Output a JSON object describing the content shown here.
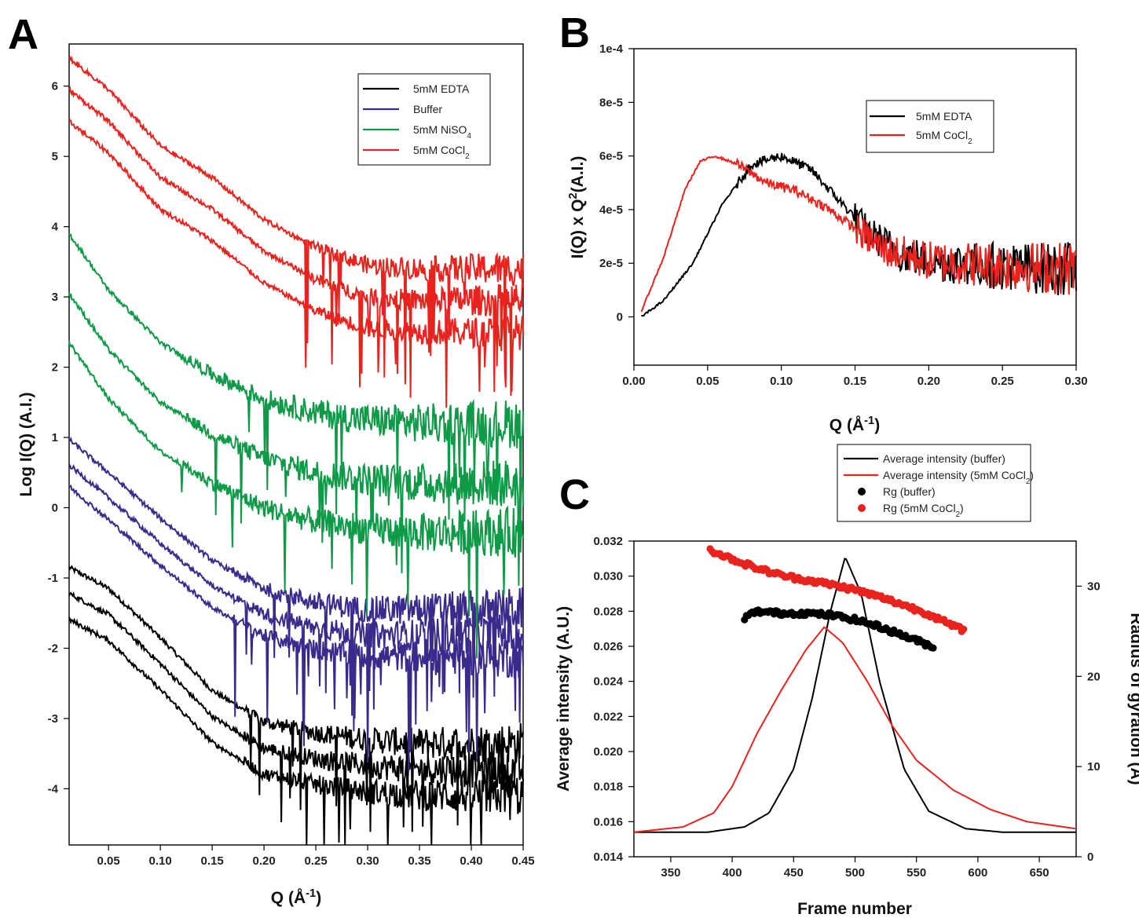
{
  "chart_data": [
    {
      "panel": "A",
      "type": "line",
      "xlabel": "Q (Å-1)",
      "ylabel": "Log I(Q) (A.I.)",
      "xlim": [
        0.012,
        0.45
      ],
      "ylim": [
        -4.8,
        6.6
      ],
      "xticks": [
        0.05,
        0.1,
        0.15,
        0.2,
        0.25,
        0.3,
        0.35,
        0.4,
        0.45
      ],
      "yticks": [
        -4,
        -3,
        -2,
        -1,
        0,
        1,
        2,
        3,
        4,
        5,
        6
      ],
      "grid": false,
      "legend_position": "top-right",
      "series": [
        {
          "name": "5mM EDTA",
          "color": "#000000",
          "offsets": [
            0,
            -0.37,
            -0.74
          ],
          "noise_from": 0.18,
          "x": [
            0.012,
            0.05,
            0.1,
            0.15,
            0.2,
            0.25,
            0.3,
            0.35,
            0.4,
            0.45
          ],
          "y": [
            -0.85,
            -1.15,
            -1.85,
            -2.6,
            -3.05,
            -3.2,
            -3.3,
            -3.35,
            -3.35,
            -3.35
          ]
        },
        {
          "name": "Buffer",
          "color": "#3a2a8c",
          "offsets": [
            0,
            -0.36,
            -0.67
          ],
          "noise_from": 0.17,
          "x": [
            0.012,
            0.05,
            0.1,
            0.15,
            0.2,
            0.25,
            0.3,
            0.35,
            0.4,
            0.45
          ],
          "y": [
            0.97,
            0.5,
            -0.15,
            -0.75,
            -1.15,
            -1.35,
            -1.45,
            -1.45,
            -1.45,
            -1.45
          ]
        },
        {
          "name": "5mM NiSO4",
          "color": "#0e9a47",
          "offsets": [
            0,
            -0.85,
            -1.55
          ],
          "noise_from": 0.12,
          "x": [
            0.012,
            0.05,
            0.1,
            0.15,
            0.2,
            0.25,
            0.3,
            0.35,
            0.4,
            0.45
          ],
          "y": [
            3.9,
            3.1,
            2.35,
            1.9,
            1.55,
            1.35,
            1.25,
            1.2,
            1.2,
            1.2
          ]
        },
        {
          "name": "5mM CoCl2",
          "color": "#e8231e",
          "offsets": [
            0,
            -0.45,
            -0.9
          ],
          "noise_from": 0.24,
          "x": [
            0.012,
            0.05,
            0.1,
            0.15,
            0.2,
            0.25,
            0.3,
            0.35,
            0.4,
            0.45
          ],
          "y": [
            6.4,
            5.95,
            5.15,
            4.7,
            4.1,
            3.7,
            3.45,
            3.4,
            3.4,
            3.4
          ]
        }
      ]
    },
    {
      "panel": "B",
      "type": "line",
      "xlabel": "Q (Å-1)",
      "ylabel": "I(Q) x Q2(A.I.)",
      "xlim": [
        0.0,
        0.3
      ],
      "ylim": [
        -1.8e-05,
        0.0001
      ],
      "xticks": [
        0.0,
        0.05,
        0.1,
        0.15,
        0.2,
        0.25,
        0.3
      ],
      "yticks": [
        0,
        2e-05,
        4e-05,
        6e-05,
        8e-05,
        0.0001
      ],
      "ytick_labels": [
        "0",
        "2e-5",
        "4e-5",
        "6e-5",
        "8e-5",
        "1e-4"
      ],
      "grid": false,
      "legend_position": "top-right",
      "series": [
        {
          "name": "5mM EDTA",
          "color": "#000000",
          "x": [
            0.005,
            0.02,
            0.04,
            0.06,
            0.08,
            0.1,
            0.12,
            0.14,
            0.16,
            0.18,
            0.2,
            0.22,
            0.25,
            0.28,
            0.3
          ],
          "y": [
            0.0,
            6e-06,
            2e-05,
            4.2e-05,
            5.7e-05,
            6e-05,
            5.5e-05,
            4.3e-05,
            3.1e-05,
            2.4e-05,
            2.1e-05,
            2e-05,
            1.9e-05,
            1.8e-05,
            1.8e-05
          ]
        },
        {
          "name": "5mM CoCl2",
          "color": "#e8231e",
          "x": [
            0.005,
            0.02,
            0.035,
            0.045,
            0.055,
            0.07,
            0.09,
            0.11,
            0.13,
            0.15,
            0.17,
            0.2,
            0.25,
            0.3
          ],
          "y": [
            2e-06,
            2.2e-05,
            4.8e-05,
            5.8e-05,
            6e-05,
            5.7e-05,
            5e-05,
            4.7e-05,
            4.1e-05,
            3.3e-05,
            2.5e-05,
            2.1e-05,
            1.9e-05,
            1.8e-05
          ]
        }
      ]
    },
    {
      "panel": "C",
      "type": "line",
      "xlabel": "Frame number",
      "ylabel": "Average intensity (A.U.)",
      "y2label": "Radius of gyration (Å)",
      "xlim": [
        320,
        680
      ],
      "ylim": [
        0.014,
        0.032
      ],
      "y2lim": [
        0,
        35
      ],
      "xticks": [
        350,
        400,
        450,
        500,
        550,
        600,
        650
      ],
      "yticks": [
        0.014,
        0.016,
        0.018,
        0.02,
        0.022,
        0.024,
        0.026,
        0.028,
        0.03,
        0.032
      ],
      "ytick_labels": [
        "0.014",
        "0.016",
        "0.018",
        "0.020",
        "0.022",
        "0.024",
        "0.026",
        "0.028",
        "0.030",
        "0.032"
      ],
      "y2ticks": [
        0,
        10,
        20,
        30
      ],
      "grid": false,
      "legend_position": "top",
      "series": [
        {
          "name": "Average intensity (buffer)",
          "color": "#000000",
          "axis": "left",
          "x": [
            320,
            380,
            410,
            430,
            450,
            465,
            480,
            492,
            505,
            520,
            540,
            560,
            590,
            620,
            680
          ],
          "y": [
            0.0154,
            0.0154,
            0.0157,
            0.0165,
            0.019,
            0.023,
            0.028,
            0.0311,
            0.029,
            0.024,
            0.019,
            0.0166,
            0.0156,
            0.0154,
            0.0154
          ]
        },
        {
          "name": "Average intensity (5mM CoCl2)",
          "color": "#e8231e",
          "axis": "left",
          "x": [
            320,
            360,
            385,
            400,
            420,
            440,
            460,
            475,
            490,
            510,
            530,
            550,
            580,
            610,
            640,
            680
          ],
          "y": [
            0.0154,
            0.0157,
            0.0165,
            0.018,
            0.021,
            0.0235,
            0.0258,
            0.0271,
            0.0262,
            0.024,
            0.0215,
            0.0195,
            0.0178,
            0.0167,
            0.016,
            0.0156
          ]
        },
        {
          "name": "Rg (buffer)",
          "color": "#000000",
          "axis": "right",
          "marker": "circle",
          "x": [
            410,
            420,
            440,
            460,
            480,
            500,
            520,
            540,
            565
          ],
          "y": [
            26.5,
            27.2,
            27.0,
            27.0,
            26.8,
            26.3,
            25.5,
            24.5,
            23.2
          ]
        },
        {
          "name": "Rg (5mM CoCl2)",
          "color": "#e8231e",
          "axis": "right",
          "marker": "circle",
          "x": [
            382,
            400,
            420,
            440,
            460,
            480,
            500,
            520,
            540,
            560,
            575,
            590
          ],
          "y": [
            34.0,
            33.0,
            32.0,
            31.2,
            30.7,
            30.2,
            29.6,
            28.8,
            27.9,
            26.9,
            25.9,
            25.0
          ]
        }
      ]
    }
  ]
}
